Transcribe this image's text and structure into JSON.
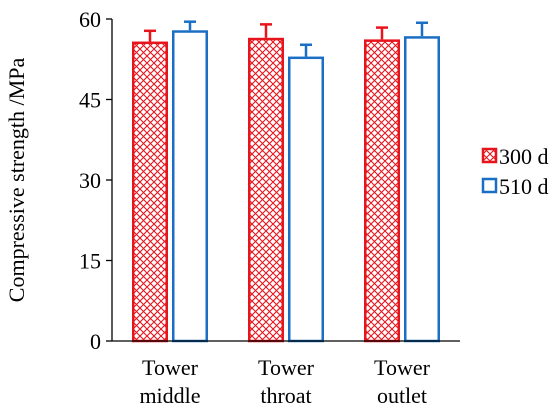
{
  "chart_data": {
    "type": "bar",
    "title": "",
    "xlabel": "",
    "ylabel": "Compressive strength /MPa",
    "ylim": [
      0,
      60
    ],
    "yticks": [
      "0",
      "15",
      "30",
      "45",
      "60"
    ],
    "grid": false,
    "legend_position": "right",
    "categories": [
      [
        "Tower",
        "middle"
      ],
      [
        "Tower",
        "throat"
      ],
      [
        "Tower",
        "outlet"
      ]
    ],
    "series": [
      {
        "name": "300 d",
        "values": [
          55.8,
          56.5,
          56.2
        ],
        "errors": [
          2.0,
          2.5,
          2.2
        ],
        "color": "#e8141c",
        "fill": "crosshatch"
      },
      {
        "name": "510 d",
        "values": [
          57.9,
          53.0,
          56.8
        ],
        "errors": [
          1.6,
          2.2,
          2.5
        ],
        "color": "#1a6fc4",
        "fill": "white"
      }
    ]
  }
}
